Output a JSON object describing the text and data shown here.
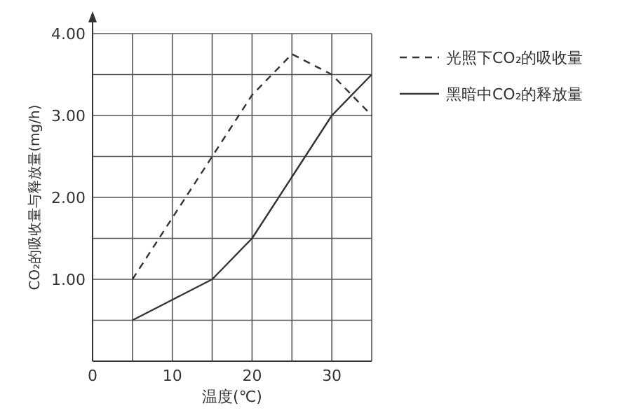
{
  "chart_data": {
    "type": "line",
    "xlabel": "温度(℃)",
    "ylabel": "CO₂的吸收量与释放量(mg/h)",
    "x": [
      5,
      10,
      15,
      20,
      25,
      30,
      35
    ],
    "xlim": [
      0,
      35
    ],
    "xticks": [
      0,
      {
        "value": 5,
        "label": null
      },
      10,
      {
        "value": 15,
        "label": null
      },
      20,
      {
        "value": 25,
        "label": null
      },
      30,
      {
        "value": 35,
        "label": null
      }
    ],
    "ylim": [
      0,
      4
    ],
    "yticks": [
      {
        "value": 0.5,
        "label": null
      },
      {
        "value": 1,
        "label": "1.00"
      },
      {
        "value": 1.5,
        "label": null
      },
      {
        "value": 2,
        "label": "2.00"
      },
      {
        "value": 2.5,
        "label": null
      },
      {
        "value": 3,
        "label": "3.00"
      },
      {
        "value": 3.5,
        "label": null
      },
      {
        "value": 4,
        "label": "4.00"
      }
    ],
    "grid": true,
    "legend": "right",
    "marker": "none",
    "series": [
      {
        "name": "光照下CO₂的吸收量",
        "color": "#333333",
        "line_style": "dashed",
        "values": [
          1.0,
          1.75,
          2.5,
          3.25,
          3.75,
          3.5,
          3.0
        ]
      },
      {
        "name": "黑暗中CO₂的释放量",
        "color": "#333333",
        "line_style": "solid",
        "values": [
          0.5,
          0.75,
          1.0,
          1.5,
          2.25,
          3.0,
          3.5
        ]
      }
    ]
  }
}
